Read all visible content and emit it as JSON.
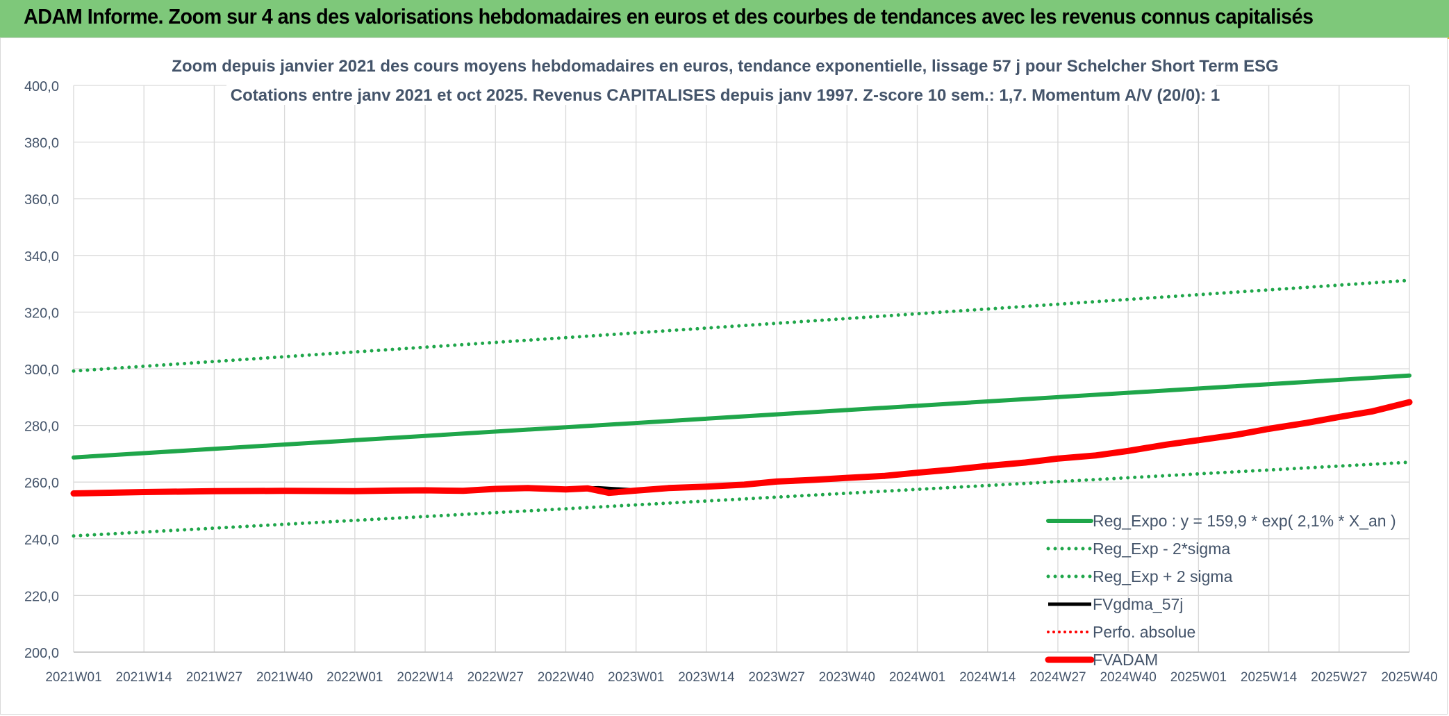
{
  "banner": {
    "title": "ADAM Informe. Zoom sur 4 ans des valorisations hebdomadaires en euros et des courbes de tendances avec les revenus connus capitalisés"
  },
  "colors": {
    "banner_bg": "#7ec87a",
    "green": "#1fa64a",
    "red": "#ff0000",
    "black": "#000000",
    "grid": "#d9d9d9",
    "text": "#44546a"
  },
  "chart_data": {
    "type": "line",
    "title": "Zoom depuis janvier 2021 des cours moyens hebdomadaires en euros, tendance exponentielle, lissage 57 j pour Schelcher Short Term ESG",
    "subtitle": "Cotations entre janv 2021 et oct 2025. Revenus CAPITALISES depuis janv 1997. Z-score 10 sem.: 1,7. Momentum A/V (20/0): 1",
    "xlabel": "",
    "ylabel": "",
    "ylim": [
      200,
      400
    ],
    "yticks": [
      "200,0",
      "220,0",
      "240,0",
      "260,0",
      "280,0",
      "300,0",
      "320,0",
      "340,0",
      "360,0",
      "380,0",
      "400,0"
    ],
    "xticks": [
      "2021W01",
      "2021W14",
      "2021W27",
      "2021W40",
      "2022W01",
      "2022W14",
      "2022W27",
      "2022W40",
      "2023W01",
      "2023W14",
      "2023W27",
      "2023W40",
      "2024W01",
      "2024W14",
      "2024W27",
      "2024W40",
      "2025W01",
      "2025W14",
      "2025W27",
      "2025W40"
    ],
    "x_range": [
      0,
      247
    ],
    "grid": true,
    "legend_position": "bottom-right",
    "series": [
      {
        "name": "Reg_Expo : y = 159,9 * exp( 2,1% *  X_an )",
        "style": "solid-green",
        "points": [
          [
            0,
            268.7
          ],
          [
            247,
            297.6
          ]
        ]
      },
      {
        "name": "Reg_Exp - 2*sigma",
        "style": "dotted-green",
        "points": [
          [
            0,
            241.0
          ],
          [
            247,
            267.0
          ]
        ]
      },
      {
        "name": "Reg_Exp + 2 sigma",
        "style": "dotted-green",
        "points": [
          [
            0,
            299.2
          ],
          [
            247,
            331.2
          ]
        ]
      },
      {
        "name": "FVgdma_57j",
        "style": "solid-black",
        "points": [
          [
            0,
            256.1
          ],
          [
            26,
            256.8
          ],
          [
            52,
            256.9
          ],
          [
            65,
            257.0
          ],
          [
            78,
            257.3
          ],
          [
            84,
            257.8
          ],
          [
            91,
            257.7
          ],
          [
            97,
            258.0
          ],
          [
            104,
            257.2
          ],
          [
            110,
            258.0
          ],
          [
            117,
            258.5
          ],
          [
            124,
            259.3
          ],
          [
            130,
            260.0
          ]
        ]
      },
      {
        "name": "Perfo. absolue",
        "style": "dotted-red",
        "points": []
      },
      {
        "name": "FVADAM",
        "style": "thick-red",
        "points": [
          [
            0,
            256.0
          ],
          [
            13,
            256.5
          ],
          [
            26,
            256.8
          ],
          [
            39,
            256.9
          ],
          [
            52,
            256.8
          ],
          [
            59,
            257.0
          ],
          [
            65,
            257.1
          ],
          [
            72,
            256.9
          ],
          [
            78,
            257.6
          ],
          [
            84,
            257.9
          ],
          [
            91,
            257.4
          ],
          [
            95,
            257.8
          ],
          [
            99,
            256.2
          ],
          [
            104,
            257.0
          ],
          [
            110,
            257.9
          ],
          [
            117,
            258.4
          ],
          [
            124,
            259.1
          ],
          [
            130,
            260.2
          ],
          [
            137,
            260.8
          ],
          [
            143,
            261.5
          ],
          [
            150,
            262.2
          ],
          [
            156,
            263.3
          ],
          [
            163,
            264.5
          ],
          [
            169,
            265.7
          ],
          [
            176,
            266.9
          ],
          [
            182,
            268.3
          ],
          [
            189,
            269.4
          ],
          [
            195,
            271.0
          ],
          [
            202,
            273.2
          ],
          [
            208,
            274.8
          ],
          [
            215,
            276.7
          ],
          [
            221,
            278.8
          ],
          [
            228,
            280.9
          ],
          [
            234,
            283.0
          ],
          [
            240,
            284.9
          ],
          [
            247,
            288.2
          ]
        ]
      }
    ]
  }
}
